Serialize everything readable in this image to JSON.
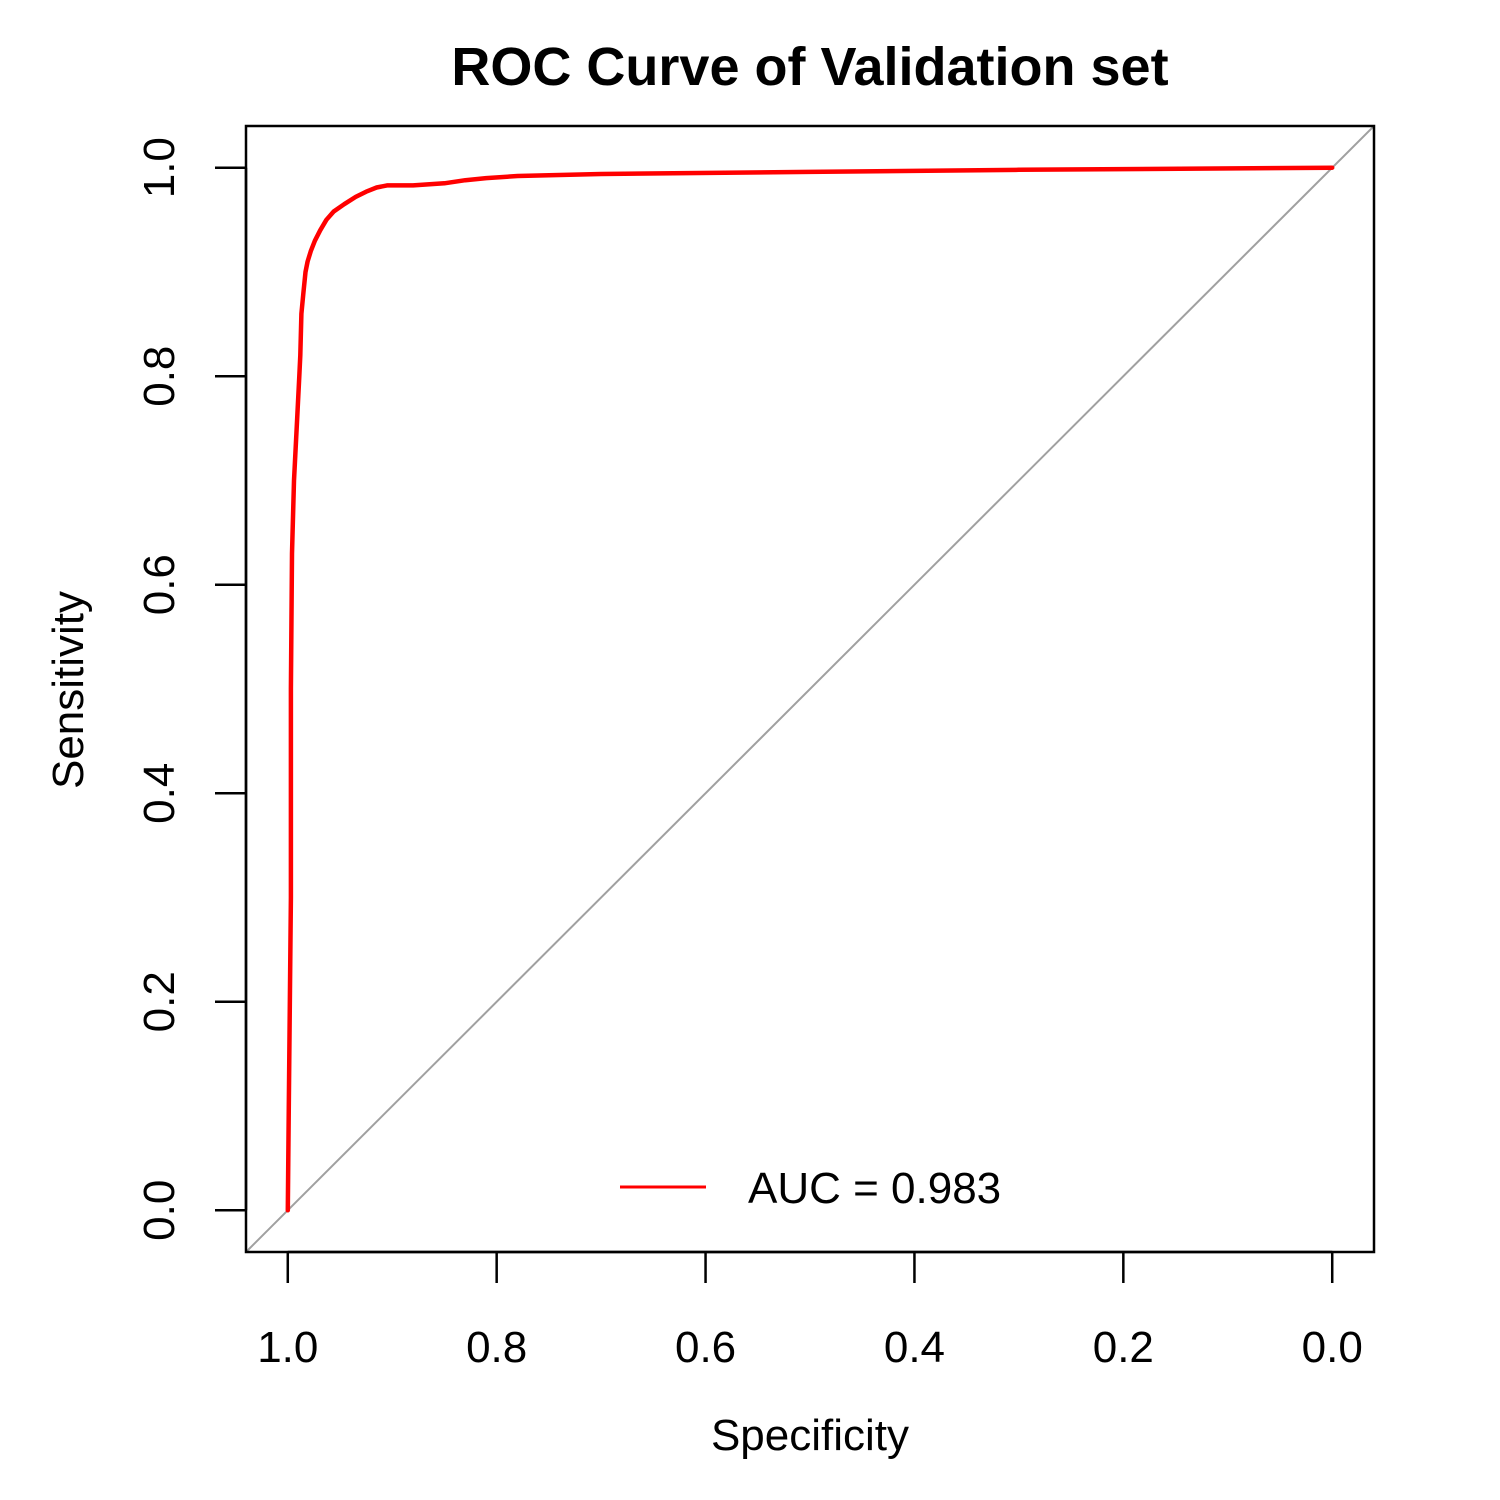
{
  "chart_data": {
    "type": "line",
    "title": "ROC Curve of Validation set",
    "xlabel": "Specificity",
    "ylabel": "Sensitivity",
    "x_reversed": true,
    "xlim": [
      1.04,
      -0.04
    ],
    "ylim": [
      -0.04,
      1.04
    ],
    "x_ticks": [
      1.0,
      0.8,
      0.6,
      0.4,
      0.2,
      0.0
    ],
    "x_tick_labels": [
      "1.0",
      "0.8",
      "0.6",
      "0.4",
      "0.2",
      "0.0"
    ],
    "y_ticks": [
      0.0,
      0.2,
      0.4,
      0.6,
      0.8,
      1.0
    ],
    "y_tick_labels": [
      "0.0",
      "0.2",
      "0.4",
      "0.6",
      "0.8",
      "1.0"
    ],
    "grid": false,
    "legend": {
      "position": "bottom",
      "entries": [
        {
          "label": "AUC = 0.983",
          "color": "#ff0000"
        }
      ]
    },
    "series": [
      {
        "name": "AUC = 0.983",
        "color": "#ff0000",
        "x": [
          1.0,
          0.999,
          0.997,
          0.997,
          0.996,
          0.994,
          0.991,
          0.989,
          0.988,
          0.987,
          0.985,
          0.983,
          0.981,
          0.978,
          0.974,
          0.969,
          0.963,
          0.956,
          0.946,
          0.935,
          0.925,
          0.915,
          0.905,
          0.88,
          0.85,
          0.83,
          0.81,
          0.78,
          0.7,
          0.5,
          0.3,
          0.0
        ],
        "y": [
          0.0,
          0.1,
          0.3,
          0.5,
          0.63,
          0.7,
          0.76,
          0.8,
          0.82,
          0.86,
          0.88,
          0.9,
          0.91,
          0.92,
          0.93,
          0.94,
          0.95,
          0.958,
          0.965,
          0.972,
          0.977,
          0.981,
          0.983,
          0.983,
          0.985,
          0.988,
          0.99,
          0.992,
          0.994,
          0.996,
          0.998,
          1.0
        ]
      }
    ],
    "reference_line": {
      "from": [
        1.04,
        -0.04
      ],
      "to": [
        -0.04,
        1.04
      ],
      "color": "#a0a0a0"
    }
  }
}
